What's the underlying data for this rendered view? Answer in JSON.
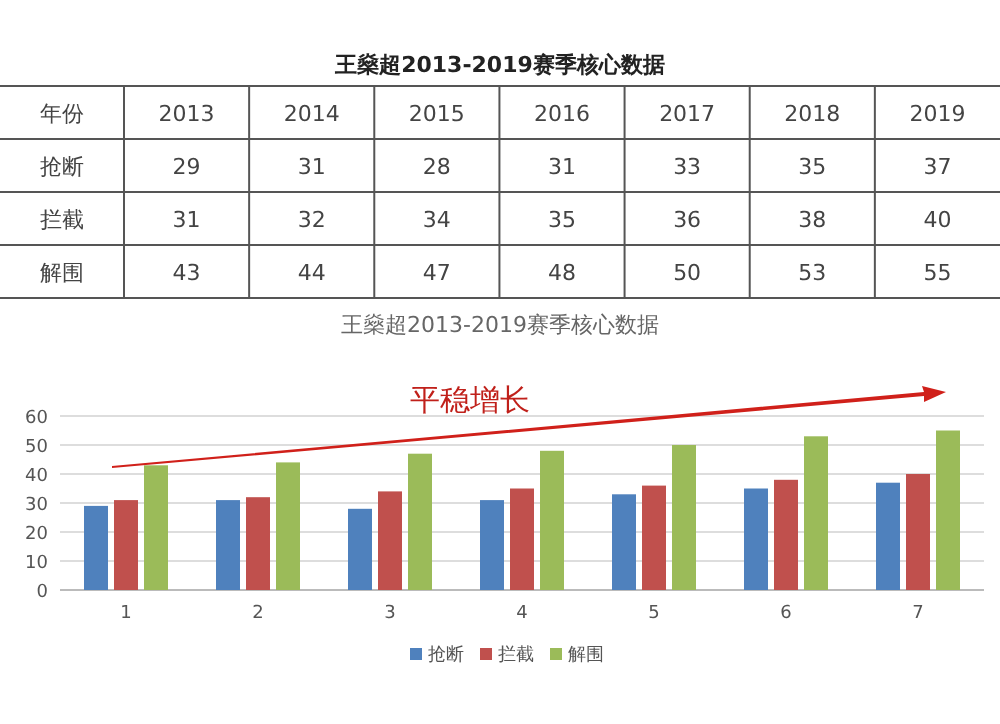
{
  "chart_data": [
    {
      "type": "heatmap",
      "title": "王燊超2013-2019赛季核心数据",
      "xlabel": "年份",
      "categories": [
        "2013",
        "2014",
        "2015",
        "2016",
        "2017",
        "2018",
        "2019"
      ],
      "y_categories": [
        "抢断",
        "拦截",
        "解围"
      ],
      "data_labels": true,
      "cells": [
        [
          29,
          31,
          28,
          31,
          33,
          35,
          37
        ],
        [
          31,
          32,
          34,
          35,
          36,
          38,
          40
        ],
        [
          43,
          44,
          47,
          48,
          50,
          53,
          55
        ]
      ]
    },
    {
      "type": "bar",
      "title": "王燊超2013-2019赛季核心数据",
      "annotations": [
        "平稳增长"
      ],
      "categories": [
        "1",
        "2",
        "3",
        "4",
        "5",
        "6",
        "7"
      ],
      "ylim": [
        0,
        60
      ],
      "yticks": [
        0,
        10,
        20,
        30,
        40,
        50,
        60
      ],
      "grid": "y",
      "legend": "bottom",
      "series": [
        {
          "name": "抢断",
          "color": "#4f81bd",
          "values": [
            29,
            31,
            28,
            31,
            33,
            35,
            37
          ]
        },
        {
          "name": "拦截",
          "color": "#c0504d",
          "values": [
            31,
            32,
            34,
            35,
            36,
            38,
            40
          ]
        },
        {
          "name": "解围",
          "color": "#9bbb59",
          "values": [
            43,
            44,
            47,
            48,
            50,
            53,
            55
          ]
        }
      ]
    }
  ]
}
